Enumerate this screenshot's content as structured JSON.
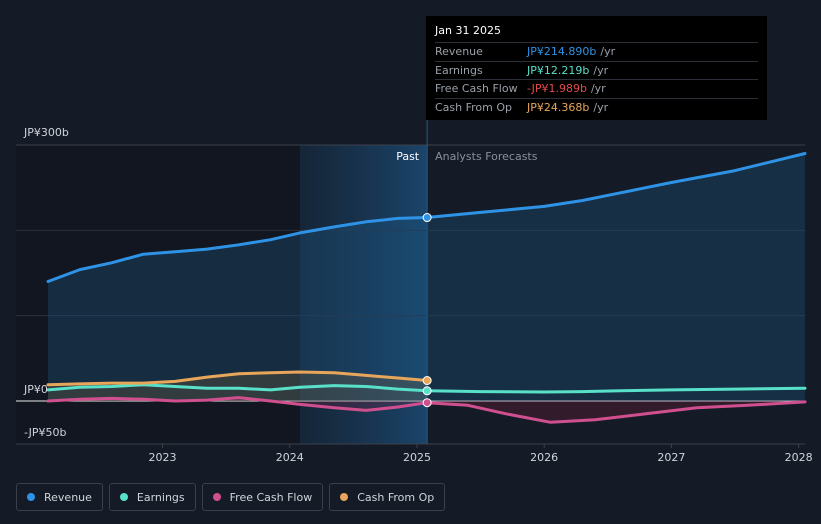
{
  "chart_data": {
    "type": "line",
    "x_unit": "year",
    "xlim": [
      2022.1,
      2028.05
    ],
    "ylim": [
      -50,
      300
    ],
    "y_labels": [
      {
        "value": 300,
        "text": "JP¥300b"
      },
      {
        "value": 0,
        "text": "JP¥0"
      },
      {
        "value": -50,
        "text": "-JP¥50b"
      }
    ],
    "gridlines": [
      300,
      200,
      100,
      0
    ],
    "x_ticks": [
      {
        "value": 2023,
        "text": "2023"
      },
      {
        "value": 2024,
        "text": "2024"
      },
      {
        "value": 2025,
        "text": "2025"
      },
      {
        "value": 2026,
        "text": "2026"
      },
      {
        "value": 2027,
        "text": "2027"
      },
      {
        "value": 2028,
        "text": "2028"
      }
    ],
    "divider_x": 2025.08,
    "highlight_start_x": 2024.08,
    "past_label": "Past",
    "forecast_label": "Analysts Forecasts",
    "series": [
      {
        "name": "Revenue",
        "color": "#2e93e6",
        "fill": true,
        "points": [
          [
            2022.1,
            140
          ],
          [
            2022.35,
            154
          ],
          [
            2022.6,
            162
          ],
          [
            2022.85,
            172
          ],
          [
            2023.1,
            175
          ],
          [
            2023.35,
            178
          ],
          [
            2023.6,
            183
          ],
          [
            2023.85,
            189
          ],
          [
            2024.08,
            197
          ],
          [
            2024.35,
            204
          ],
          [
            2024.6,
            210
          ],
          [
            2024.85,
            214
          ],
          [
            2025.08,
            215
          ]
        ],
        "forecast": [
          [
            2025.08,
            215
          ],
          [
            2025.5,
            221
          ],
          [
            2026.0,
            228
          ],
          [
            2026.3,
            235
          ],
          [
            2026.6,
            244
          ],
          [
            2027.0,
            256
          ],
          [
            2027.5,
            270
          ],
          [
            2028.05,
            290
          ]
        ]
      },
      {
        "name": "Earnings",
        "color": "#58e0c8",
        "fill": false,
        "points": [
          [
            2022.1,
            13
          ],
          [
            2022.35,
            16
          ],
          [
            2022.6,
            17
          ],
          [
            2022.85,
            19
          ],
          [
            2023.1,
            17
          ],
          [
            2023.35,
            15
          ],
          [
            2023.6,
            15
          ],
          [
            2023.85,
            13
          ],
          [
            2024.08,
            16
          ],
          [
            2024.35,
            18
          ],
          [
            2024.6,
            17
          ],
          [
            2024.85,
            14
          ],
          [
            2025.08,
            12
          ]
        ],
        "forecast": [
          [
            2025.08,
            12
          ],
          [
            2025.5,
            11
          ],
          [
            2026.0,
            10.5
          ],
          [
            2026.3,
            11
          ],
          [
            2026.6,
            12
          ],
          [
            2027.0,
            13
          ],
          [
            2027.5,
            14
          ],
          [
            2028.05,
            15
          ]
        ]
      },
      {
        "name": "Free Cash Flow",
        "color": "#d0508f",
        "fill": false,
        "points": [
          [
            2022.1,
            0
          ],
          [
            2022.35,
            2
          ],
          [
            2022.6,
            3
          ],
          [
            2022.85,
            2
          ],
          [
            2023.1,
            0
          ],
          [
            2023.35,
            1
          ],
          [
            2023.6,
            4
          ],
          [
            2023.85,
            0
          ],
          [
            2024.08,
            -4
          ],
          [
            2024.35,
            -8
          ],
          [
            2024.6,
            -11
          ],
          [
            2024.85,
            -7
          ],
          [
            2025.08,
            -2
          ]
        ],
        "forecast": [
          [
            2025.08,
            -2
          ],
          [
            2025.4,
            -5
          ],
          [
            2025.7,
            -15
          ],
          [
            2026.05,
            -25
          ],
          [
            2026.4,
            -22
          ],
          [
            2026.8,
            -15
          ],
          [
            2027.2,
            -8
          ],
          [
            2027.6,
            -5
          ],
          [
            2028.05,
            -1
          ]
        ]
      },
      {
        "name": "Cash From Op",
        "color": "#e8a65a",
        "fill": false,
        "points": [
          [
            2022.1,
            19
          ],
          [
            2022.35,
            20
          ],
          [
            2022.6,
            21
          ],
          [
            2022.85,
            21
          ],
          [
            2023.1,
            23
          ],
          [
            2023.35,
            28
          ],
          [
            2023.6,
            32
          ],
          [
            2023.85,
            33
          ],
          [
            2024.08,
            34
          ],
          [
            2024.35,
            33
          ],
          [
            2024.6,
            30
          ],
          [
            2024.85,
            27
          ],
          [
            2025.08,
            24
          ]
        ],
        "forecast": []
      }
    ]
  },
  "tooltip": {
    "date": "Jan 31 2025",
    "rows": [
      {
        "label": "Revenue",
        "value": "JP¥214.890b",
        "unit": "/yr",
        "color": "#2e93e6"
      },
      {
        "label": "Earnings",
        "value": "JP¥12.219b",
        "unit": "/yr",
        "color": "#58e0c8"
      },
      {
        "label": "Free Cash Flow",
        "value": "-JP¥1.989b",
        "unit": "/yr",
        "color": "#e64b4b"
      },
      {
        "label": "Cash From Op",
        "value": "JP¥24.368b",
        "unit": "/yr",
        "color": "#e8a65a"
      }
    ]
  },
  "legend": [
    {
      "label": "Revenue",
      "color": "#2e93e6"
    },
    {
      "label": "Earnings",
      "color": "#58e0c8"
    },
    {
      "label": "Free Cash Flow",
      "color": "#d0508f"
    },
    {
      "label": "Cash From Op",
      "color": "#e8a65a"
    }
  ]
}
